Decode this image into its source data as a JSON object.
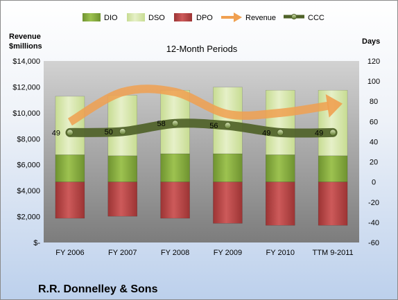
{
  "chart_data": {
    "type": "bar",
    "title": "12-Month Periods",
    "company": "R.R. Donnelley & Sons",
    "left_axis_title": [
      "Revenue",
      "$millions"
    ],
    "right_axis_title": "Days",
    "categories": [
      "FY 2006",
      "FY 2007",
      "FY 2008",
      "FY 2009",
      "FY 2010",
      "TTM 9-2011"
    ],
    "left_axis": {
      "min": 0,
      "max": 14000,
      "step": 2000,
      "tick_labels": [
        "$-",
        "$2,000",
        "$4,000",
        "$6,000",
        "$8,000",
        "$10,000",
        "$12,000",
        "$14,000"
      ]
    },
    "right_axis": {
      "min": -60,
      "max": 120,
      "step": 20,
      "tick_labels": [
        "-60",
        "-40",
        "-20",
        "0",
        "20",
        "40",
        "60",
        "80",
        "100",
        "120"
      ]
    },
    "legend": {
      "position": "top",
      "items": [
        {
          "name": "DIO",
          "kind": "bar"
        },
        {
          "name": "DSO",
          "kind": "bar"
        },
        {
          "name": "DPO",
          "kind": "bar"
        },
        {
          "name": "Revenue",
          "kind": "arrow"
        },
        {
          "name": "CCC",
          "kind": "line"
        }
      ]
    },
    "series": [
      {
        "name": "DIO",
        "axis": "right",
        "stack": "positive",
        "color": "#8cb040",
        "values": [
          27,
          26,
          28,
          28,
          27,
          26
        ]
      },
      {
        "name": "DSO",
        "axis": "right",
        "stack": "positive",
        "color": "#d8e8b0",
        "values": [
          58,
          60,
          63,
          66,
          64,
          65
        ]
      },
      {
        "name": "DPO",
        "axis": "right",
        "stack": "negative",
        "color": "#c04a4a",
        "values": [
          -36,
          -34,
          -36,
          -41,
          -43,
          -43
        ]
      },
      {
        "name": "Revenue",
        "axis": "left",
        "type": "line",
        "color": "#f0a050",
        "values": [
          9300,
          11600,
          11600,
          9900,
          10000,
          10600
        ]
      },
      {
        "name": "CCC",
        "axis": "right",
        "type": "line",
        "color": "#4f6228",
        "values": [
          49,
          50,
          58,
          56,
          49,
          49
        ],
        "labels": [
          "49",
          "50",
          "58",
          "56",
          "49",
          "49"
        ]
      }
    ],
    "grid": false
  }
}
